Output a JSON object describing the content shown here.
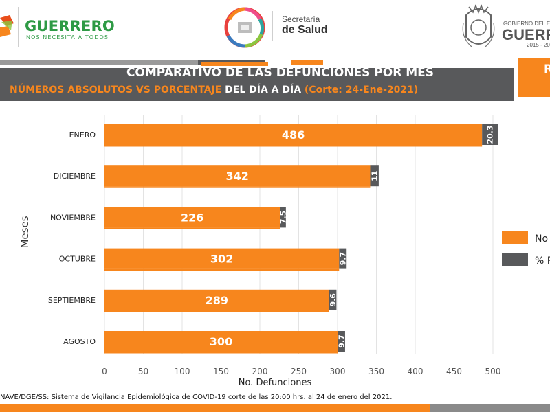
{
  "header": {
    "brand_title": "GUERRERO",
    "brand_subtitle": "NOS NECESITA A TODOS",
    "secretaria_small": "Secretaría",
    "secretaria_big": "de Salud",
    "gobierno_small": "GOBIERNO DEL E",
    "gobierno_big": "GUERR",
    "gobierno_years": "2015 - 20"
  },
  "titles": {
    "main": "COMPARATIVO DE LAS DEFUNCIONES POR MES",
    "sub_highlight": "NÚMEROS ABSOLUTOS VS PORCENTAJE",
    "sub_rest": " DEL DÍA A DÍA ",
    "sub_cut": "(Corte: 24-Ene-2021)",
    "corner": "R"
  },
  "legend": {
    "item1": "No",
    "item2": "% P"
  },
  "footer": {
    "source": "NAVE/DGE/SS: Sistema de Vigilancia Epidemiológica de COVID-19 corte de las 20:00 hrs. al 24 de  enero del 2021."
  },
  "colors": {
    "orange": "#f7861d",
    "gray": "#58595b",
    "green": "#2e9a45"
  },
  "chart_data": {
    "type": "bar",
    "orientation": "horizontal",
    "categories": [
      "ENERO",
      "DICIEMBRE",
      "NOVIEMBRE",
      "OCTUBRE",
      "SEPTIEMBRE",
      "AGOSTO"
    ],
    "series": [
      {
        "name": "No",
        "values": [
          486,
          342,
          226,
          302,
          289,
          300
        ],
        "color": "#f7861d"
      },
      {
        "name": "% P",
        "values": [
          20.3,
          11,
          7.5,
          9.7,
          9.6,
          9.7
        ],
        "color": "#58595b"
      }
    ],
    "data_labels": {
      "absolute": [
        "486",
        "342",
        "226",
        "302",
        "289",
        "300"
      ],
      "percent": [
        "20.3",
        "11",
        "7.5",
        "9.7",
        "9.6",
        "9.7"
      ]
    },
    "xlabel": "No. Defunciones",
    "ylabel": "Meses",
    "xlim": [
      0,
      500
    ],
    "xticks": [
      0,
      50,
      100,
      150,
      200,
      250,
      300,
      350,
      400,
      450,
      500
    ],
    "stacked": true,
    "legend_position": "right"
  }
}
